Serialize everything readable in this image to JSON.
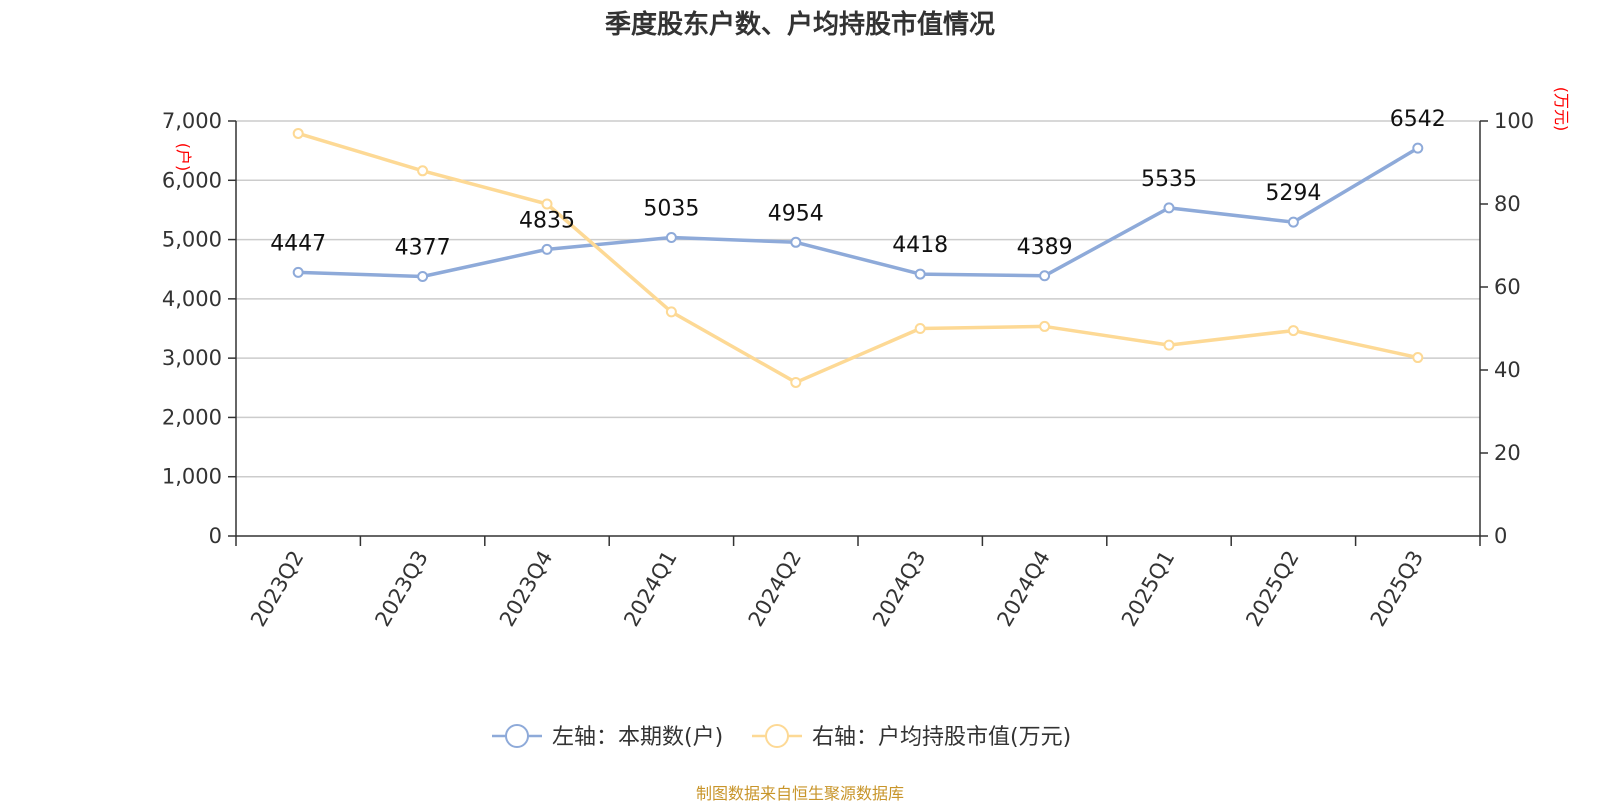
{
  "title": "季度股东户数、户均持股市值情况",
  "source": "制图数据来自恒生聚源数据库",
  "chart_data": {
    "type": "line",
    "categories": [
      "2023Q2",
      "2023Q3",
      "2023Q4",
      "2024Q1",
      "2024Q2",
      "2024Q3",
      "2024Q4",
      "2025Q1",
      "2025Q2",
      "2025Q3"
    ],
    "left_axis": {
      "unit": "(户)",
      "ylim": [
        0,
        7000
      ],
      "ticks": [
        0,
        1000,
        2000,
        3000,
        4000,
        5000,
        6000,
        7000
      ],
      "tick_labels": [
        "0",
        "1,000",
        "2,000",
        "3,000",
        "4,000",
        "5,000",
        "6,000",
        "7,000"
      ]
    },
    "right_axis": {
      "unit": "(万元)",
      "ylim": [
        0,
        100
      ],
      "ticks": [
        0,
        20,
        40,
        60,
        80,
        100
      ],
      "tick_labels": [
        "0",
        "20",
        "40",
        "60",
        "80",
        "100"
      ]
    },
    "series": [
      {
        "name": "左轴：本期数(户)",
        "axis": "left",
        "color": "#8eaad9",
        "values": [
          4447,
          4377,
          4835,
          5035,
          4954,
          4418,
          4389,
          5535,
          5294,
          6542
        ],
        "labels": [
          "4447",
          "4377",
          "4835",
          "5035",
          "4954",
          "4418",
          "4389",
          "5535",
          "5294",
          "6542"
        ]
      },
      {
        "name": "右轴：户均持股市值(万元)",
        "axis": "right",
        "color": "#fdd995",
        "values": [
          97,
          88,
          80,
          54,
          37,
          50,
          50.5,
          46,
          49.5,
          43
        ]
      }
    ],
    "grid": true,
    "legend_position": "bottom-center"
  }
}
